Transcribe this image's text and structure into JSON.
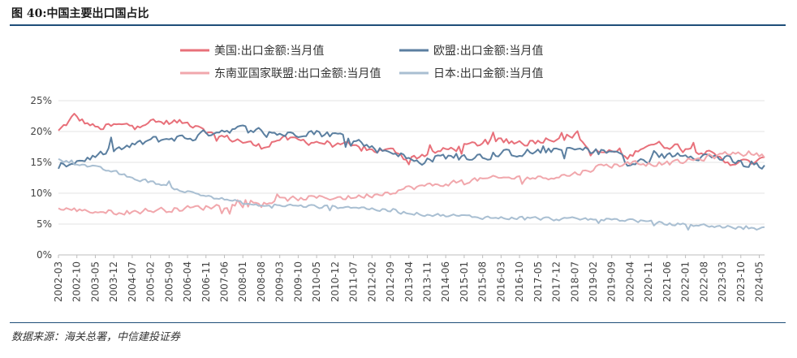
{
  "figure": {
    "title": "图 40:中国主要出口国占比",
    "source": "数据来源：海关总署，中信建投证券"
  },
  "chart_data": {
    "type": "line",
    "x_range": [
      "2002-03",
      "2024-07"
    ],
    "ylim": [
      0,
      25
    ],
    "y_format": "percent",
    "y_ticks": [
      0,
      5,
      10,
      15,
      20,
      25
    ],
    "y_tick_labels": [
      "0%",
      "5%",
      "10%",
      "15%",
      "20%",
      "25%"
    ],
    "x_tick_labels": [
      "2002-03",
      "2002-10",
      "2003-05",
      "2003-12",
      "2004-07",
      "2005-02",
      "2005-09",
      "2006-04",
      "2006-11",
      "2007-06",
      "2008-01",
      "2008-08",
      "2009-03",
      "2009-10",
      "2010-05",
      "2010-12",
      "2011-07",
      "2012-02",
      "2012-09",
      "2013-04",
      "2013-11",
      "2014-06",
      "2015-01",
      "2015-08",
      "2016-03",
      "2016-10",
      "2017-05",
      "2017-12",
      "2018-07",
      "2019-02",
      "2019-09",
      "2020-04",
      "2020-11",
      "2021-06",
      "2022-01",
      "2022-08",
      "2023-03",
      "2023-10",
      "2024-05"
    ],
    "grid": "horizontal",
    "legend_position": "top-center",
    "series": [
      {
        "name": "美国:出口金额:当月值",
        "color": "#e8707a",
        "anchors": [
          [
            "2002-03",
            20.0
          ],
          [
            "2002-09",
            22.5
          ],
          [
            "2003-01",
            21.5
          ],
          [
            "2003-06",
            20.5
          ],
          [
            "2004-01",
            21.0
          ],
          [
            "2004-06",
            21.0
          ],
          [
            "2005-01",
            21.5
          ],
          [
            "2006-01",
            21.5
          ],
          [
            "2006-09",
            21.0
          ],
          [
            "2007-01",
            19.5
          ],
          [
            "2007-12",
            18.5
          ],
          [
            "2008-08",
            17.5
          ],
          [
            "2009-03",
            18.8
          ],
          [
            "2009-12",
            18.5
          ],
          [
            "2010-12",
            18.0
          ],
          [
            "2011-06",
            17.5
          ],
          [
            "2012-01",
            17.0
          ],
          [
            "2012-12",
            16.8
          ],
          [
            "2013-03",
            15.5
          ],
          [
            "2013-12",
            16.5
          ],
          [
            "2014-12",
            17.5
          ],
          [
            "2015-12",
            18.5
          ],
          [
            "2016-12",
            18.2
          ],
          [
            "2017-12",
            19.0
          ],
          [
            "2018-08",
            19.5
          ],
          [
            "2019-01",
            16.5
          ],
          [
            "2019-12",
            16.8
          ],
          [
            "2020-03",
            15.5
          ],
          [
            "2020-08",
            17.5
          ],
          [
            "2020-12",
            18.0
          ],
          [
            "2021-12",
            17.5
          ],
          [
            "2022-06",
            17.0
          ],
          [
            "2022-12",
            16.0
          ],
          [
            "2023-06",
            15.0
          ],
          [
            "2024-01",
            15.0
          ],
          [
            "2024-07",
            15.3
          ]
        ]
      },
      {
        "name": "欧盟:出口金额:当月值",
        "color": "#5b7fa0",
        "anchors": [
          [
            "2002-03",
            14.5
          ],
          [
            "2003-01",
            15.5
          ],
          [
            "2003-12",
            17.0
          ],
          [
            "2004-06",
            17.5
          ],
          [
            "2005-01",
            18.5
          ],
          [
            "2005-12",
            19.0
          ],
          [
            "2006-06",
            19.0
          ],
          [
            "2007-01",
            20.0
          ],
          [
            "2007-12",
            20.5
          ],
          [
            "2008-08",
            20.0
          ],
          [
            "2009-06",
            19.5
          ],
          [
            "2010-01",
            20.0
          ],
          [
            "2010-12",
            19.5
          ],
          [
            "2011-06",
            19.0
          ],
          [
            "2012-01",
            17.5
          ],
          [
            "2012-06",
            17.0
          ],
          [
            "2012-12",
            16.5
          ],
          [
            "2013-06",
            15.0
          ],
          [
            "2013-12",
            15.5
          ],
          [
            "2014-06",
            16.0
          ],
          [
            "2015-01",
            16.0
          ],
          [
            "2015-12",
            16.0
          ],
          [
            "2016-06",
            16.5
          ],
          [
            "2016-12",
            16.5
          ],
          [
            "2017-12",
            17.0
          ],
          [
            "2018-06",
            17.0
          ],
          [
            "2019-01",
            17.0
          ],
          [
            "2019-12",
            16.5
          ],
          [
            "2020-03",
            14.5
          ],
          [
            "2020-12",
            15.5
          ],
          [
            "2021-12",
            16.5
          ],
          [
            "2022-06",
            16.0
          ],
          [
            "2022-12",
            16.0
          ],
          [
            "2023-12",
            14.5
          ],
          [
            "2024-07",
            14.5
          ]
        ]
      },
      {
        "name": "东南亚国家联盟:出口金额:当月值",
        "color": "#f1a7ac",
        "anchors": [
          [
            "2002-03",
            7.5
          ],
          [
            "2003-06",
            7.0
          ],
          [
            "2004-06",
            7.0
          ],
          [
            "2005-06",
            7.3
          ],
          [
            "2006-06",
            7.6
          ],
          [
            "2007-06",
            8.0
          ],
          [
            "2008-06",
            8.3
          ],
          [
            "2009-06",
            9.0
          ],
          [
            "2010-06",
            9.3
          ],
          [
            "2011-06",
            9.3
          ],
          [
            "2012-06",
            10.0
          ],
          [
            "2013-06",
            11.0
          ],
          [
            "2014-06",
            11.5
          ],
          [
            "2015-06",
            12.2
          ],
          [
            "2016-06",
            12.5
          ],
          [
            "2017-06",
            12.5
          ],
          [
            "2018-06",
            13.0
          ],
          [
            "2019-06",
            14.5
          ],
          [
            "2020-06",
            14.8
          ],
          [
            "2021-06",
            14.8
          ],
          [
            "2022-06",
            15.5
          ],
          [
            "2023-06",
            16.5
          ],
          [
            "2024-01",
            16.5
          ],
          [
            "2024-07",
            16.0
          ]
        ]
      },
      {
        "name": "日本:出口金额:当月值",
        "color": "#a9bfd2",
        "anchors": [
          [
            "2002-03",
            15.5
          ],
          [
            "2003-01",
            14.5
          ],
          [
            "2003-12",
            13.5
          ],
          [
            "2004-06",
            12.5
          ],
          [
            "2005-06",
            11.5
          ],
          [
            "2006-01",
            10.5
          ],
          [
            "2006-12",
            9.5
          ],
          [
            "2007-06",
            9.0
          ],
          [
            "2008-06",
            8.0
          ],
          [
            "2009-06",
            8.0
          ],
          [
            "2010-06",
            7.8
          ],
          [
            "2011-06",
            7.8
          ],
          [
            "2012-01",
            7.5
          ],
          [
            "2012-12",
            7.0
          ],
          [
            "2013-12",
            6.5
          ],
          [
            "2014-12",
            6.3
          ],
          [
            "2015-12",
            6.0
          ],
          [
            "2016-12",
            6.0
          ],
          [
            "2017-12",
            5.8
          ],
          [
            "2018-12",
            5.8
          ],
          [
            "2019-12",
            5.7
          ],
          [
            "2020-06",
            5.6
          ],
          [
            "2021-06",
            5.0
          ],
          [
            "2022-06",
            4.8
          ],
          [
            "2023-06",
            4.5
          ],
          [
            "2024-01",
            4.3
          ],
          [
            "2024-07",
            4.2
          ]
        ]
      }
    ]
  }
}
